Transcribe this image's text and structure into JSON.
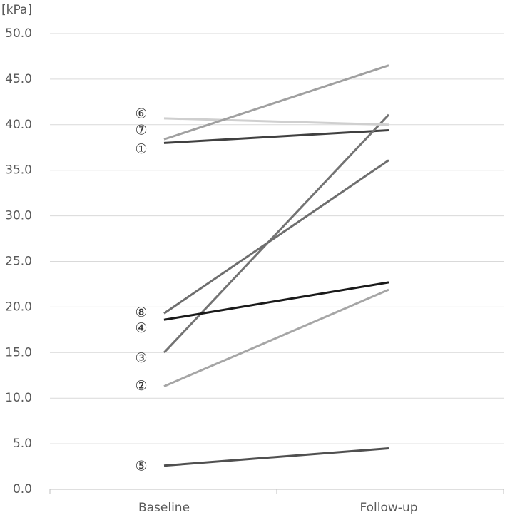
{
  "chart_data": {
    "type": "line",
    "y_label": "[kPa]",
    "categories": [
      "Baseline",
      "Follow-up"
    ],
    "series": [
      {
        "name": "①",
        "color": "#404040",
        "values": [
          38.0,
          39.4
        ]
      },
      {
        "name": "②",
        "color": "#a6a6a6",
        "values": [
          11.3,
          21.9
        ]
      },
      {
        "name": "③",
        "color": "#737373",
        "values": [
          15.0,
          41.1
        ]
      },
      {
        "name": "④",
        "color": "#1a1a1a",
        "values": [
          18.6,
          22.7
        ]
      },
      {
        "name": "⑤",
        "color": "#505050",
        "values": [
          2.6,
          4.5
        ]
      },
      {
        "name": "⑥",
        "color": "#cfcfcf",
        "values": [
          40.7,
          40.0
        ]
      },
      {
        "name": "⑦",
        "color": "#a0a0a0",
        "values": [
          38.4,
          46.5
        ]
      },
      {
        "name": "⑧",
        "color": "#6e6e6e",
        "values": [
          19.3,
          36.1
        ]
      }
    ],
    "ylim": [
      0,
      50
    ],
    "yticks": [
      {
        "value": 0,
        "label": "0.0"
      },
      {
        "value": 5,
        "label": "5.0"
      },
      {
        "value": 10,
        "label": "10.0"
      },
      {
        "value": 15,
        "label": "15.0"
      },
      {
        "value": 20,
        "label": "20.0"
      },
      {
        "value": 25,
        "label": "25.0"
      },
      {
        "value": 30,
        "label": "30.0"
      },
      {
        "value": 35,
        "label": "35.0"
      },
      {
        "value": 40,
        "label": "40.0"
      },
      {
        "value": 45,
        "label": "45.0"
      },
      {
        "value": 50,
        "label": "50.0"
      }
    ],
    "grid": true
  }
}
